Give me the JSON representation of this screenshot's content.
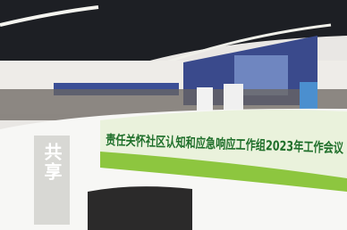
{
  "banner": {
    "text": "责任关怀社区认知和应急响应工作组2023年工作会议"
  },
  "sign": {
    "text": "共享"
  }
}
